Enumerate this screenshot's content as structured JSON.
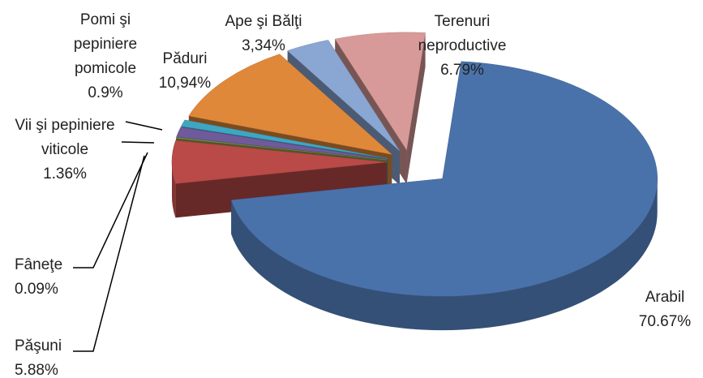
{
  "chart_data": {
    "type": "pie3d",
    "categories": [
      "Arabil",
      "Păşuni",
      "Fâneţe",
      "Vii şi pepiniere viticole",
      "Pomi şi pepiniere pomicole",
      "Păduri",
      "Ape şi Bălţi",
      "Terenuri neproductive"
    ],
    "values": [
      70.67,
      5.88,
      0.09,
      1.36,
      0.9,
      10.94,
      3.34,
      6.79
    ],
    "value_labels": [
      "70.67%",
      "5.88%",
      "0.09%",
      "1.36%",
      "0.9%",
      "10,94%",
      "3,34%",
      "6.79%"
    ],
    "colors": [
      "#4a72aa",
      "#b94a48",
      "#8aa04a",
      "#6f5a9a",
      "#3fa6c2",
      "#e0883a",
      "#8aa6d2",
      "#d89a98"
    ]
  }
}
